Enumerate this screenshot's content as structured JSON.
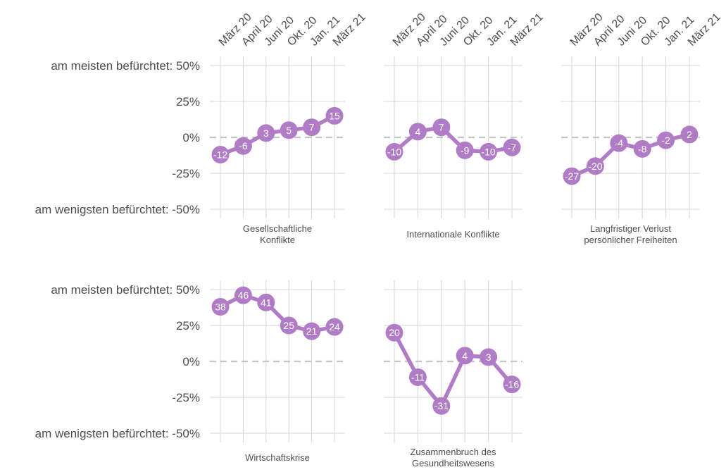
{
  "chart_data": {
    "type": "line",
    "x": [
      "März 20",
      "April 20",
      "Juni 20",
      "Okt. 20",
      "Jan. 21",
      "März 21"
    ],
    "y_ticks": [
      {
        "value": 50,
        "label": "am meisten befürchtet: 50%"
      },
      {
        "value": 25,
        "label": "25%"
      },
      {
        "value": 0,
        "label": "0%"
      },
      {
        "value": -25,
        "label": "-25%"
      },
      {
        "value": -50,
        "label": "am wenigsten befürchtet: -50%"
      }
    ],
    "ylim": [
      -50,
      50
    ],
    "grid": true,
    "color": "#b07cc6",
    "panels": [
      {
        "title_lines": [
          "Gesellschaftliche",
          "Konflikte"
        ],
        "values": [
          -12,
          -6,
          3,
          5,
          7,
          15
        ]
      },
      {
        "title_lines": [
          "Internationale Konflikte"
        ],
        "values": [
          -10,
          4,
          7,
          -9,
          -10,
          -7
        ]
      },
      {
        "title_lines": [
          "Langfristiger Verlust",
          "persönlicher Freiheiten"
        ],
        "values": [
          -27,
          -20,
          -4,
          -8,
          -2,
          2
        ]
      },
      {
        "title_lines": [
          "Wirtschaftskrise"
        ],
        "values": [
          38,
          46,
          41,
          25,
          21,
          24
        ]
      },
      {
        "title_lines": [
          "Zusammenbruch des",
          "Gesundheitswesens"
        ],
        "values": [
          20,
          -11,
          -31,
          4,
          3,
          -16
        ]
      }
    ]
  }
}
